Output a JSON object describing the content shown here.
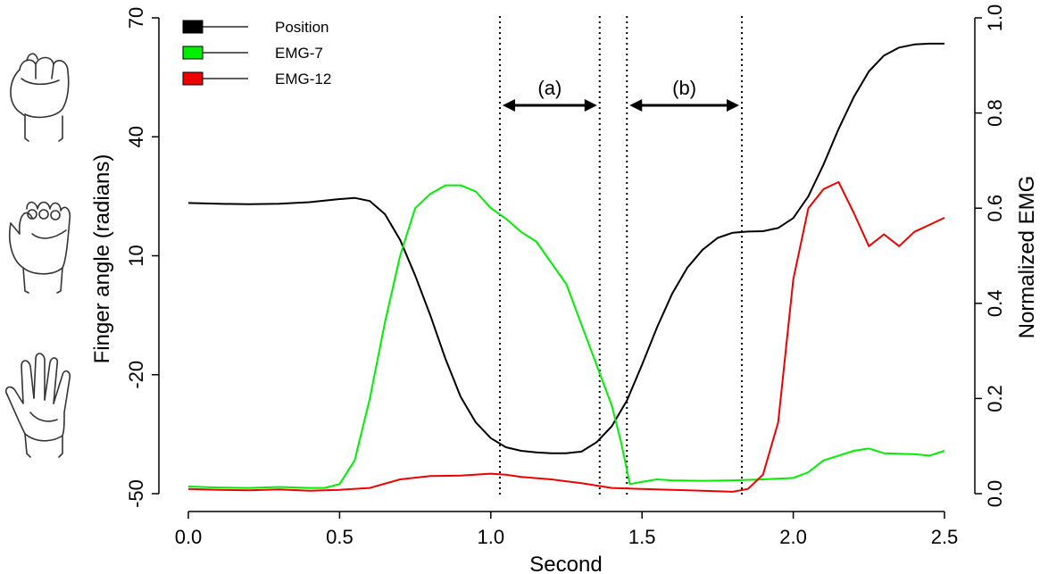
{
  "chart_data": {
    "type": "line",
    "title": "",
    "xlabel": "Second",
    "ylabel_left": "Finger angle (radians)",
    "ylabel_right": "Normalized EMG",
    "xlim": [
      0.0,
      2.5
    ],
    "ylim_left": [
      -50,
      70
    ],
    "ylim_right": [
      0.0,
      1.0
    ],
    "x_ticks": [
      "0.0",
      "0.5",
      "1.0",
      "1.5",
      "2.0",
      "2.5"
    ],
    "y_left_ticks": [
      "-50",
      "-20",
      "10",
      "40",
      "70"
    ],
    "y_right_ticks": [
      "0.0",
      "0.2",
      "0.4",
      "0.6",
      "0.8",
      "1.0"
    ],
    "grid": false,
    "legend_position": "top-left",
    "series": [
      {
        "name": "Position",
        "axis": "left",
        "color": "#000000",
        "points": [
          [
            0.0,
            23.3
          ],
          [
            0.1,
            23.1
          ],
          [
            0.2,
            23.0
          ],
          [
            0.3,
            23.1
          ],
          [
            0.4,
            23.5
          ],
          [
            0.5,
            24.3
          ],
          [
            0.55,
            24.6
          ],
          [
            0.6,
            23.8
          ],
          [
            0.65,
            20.5
          ],
          [
            0.7,
            14.0
          ],
          [
            0.75,
            5.0
          ],
          [
            0.8,
            -5.0
          ],
          [
            0.85,
            -16.0
          ],
          [
            0.9,
            -25.5
          ],
          [
            0.95,
            -32.0
          ],
          [
            1.0,
            -36.0
          ],
          [
            1.05,
            -38.3
          ],
          [
            1.1,
            -39.2
          ],
          [
            1.15,
            -39.6
          ],
          [
            1.2,
            -39.8
          ],
          [
            1.25,
            -39.8
          ],
          [
            1.3,
            -39.4
          ],
          [
            1.35,
            -37.0
          ],
          [
            1.4,
            -33.0
          ],
          [
            1.45,
            -26.5
          ],
          [
            1.5,
            -17.5
          ],
          [
            1.55,
            -8.0
          ],
          [
            1.6,
            0.5
          ],
          [
            1.65,
            7.0
          ],
          [
            1.7,
            11.5
          ],
          [
            1.75,
            14.5
          ],
          [
            1.8,
            15.8
          ],
          [
            1.85,
            16.1
          ],
          [
            1.9,
            16.2
          ],
          [
            1.95,
            17.0
          ],
          [
            2.0,
            19.5
          ],
          [
            2.05,
            25.0
          ],
          [
            2.1,
            33.0
          ],
          [
            2.15,
            42.0
          ],
          [
            2.2,
            50.0
          ],
          [
            2.25,
            56.5
          ],
          [
            2.3,
            60.5
          ],
          [
            2.35,
            62.5
          ],
          [
            2.4,
            63.3
          ],
          [
            2.45,
            63.5
          ],
          [
            2.5,
            63.5
          ]
        ]
      },
      {
        "name": "EMG-7",
        "axis": "right",
        "color": "#00ee00",
        "points": [
          [
            0.0,
            0.015
          ],
          [
            0.1,
            0.013
          ],
          [
            0.2,
            0.012
          ],
          [
            0.3,
            0.014
          ],
          [
            0.4,
            0.012
          ],
          [
            0.45,
            0.012
          ],
          [
            0.5,
            0.02
          ],
          [
            0.55,
            0.07
          ],
          [
            0.6,
            0.2
          ],
          [
            0.65,
            0.36
          ],
          [
            0.7,
            0.5
          ],
          [
            0.75,
            0.6
          ],
          [
            0.8,
            0.63
          ],
          [
            0.85,
            0.648
          ],
          [
            0.9,
            0.648
          ],
          [
            0.95,
            0.635
          ],
          [
            1.0,
            0.6
          ],
          [
            1.05,
            0.578
          ],
          [
            1.1,
            0.55
          ],
          [
            1.15,
            0.53
          ],
          [
            1.2,
            0.485
          ],
          [
            1.25,
            0.44
          ],
          [
            1.3,
            0.355
          ],
          [
            1.35,
            0.27
          ],
          [
            1.4,
            0.185
          ],
          [
            1.43,
            0.11
          ],
          [
            1.46,
            0.02
          ],
          [
            1.5,
            0.025
          ],
          [
            1.55,
            0.03
          ],
          [
            1.6,
            0.028
          ],
          [
            1.7,
            0.027
          ],
          [
            1.8,
            0.028
          ],
          [
            1.9,
            0.03
          ],
          [
            2.0,
            0.033
          ],
          [
            2.05,
            0.045
          ],
          [
            2.1,
            0.07
          ],
          [
            2.15,
            0.08
          ],
          [
            2.2,
            0.09
          ],
          [
            2.25,
            0.095
          ],
          [
            2.3,
            0.085
          ],
          [
            2.4,
            0.083
          ],
          [
            2.45,
            0.08
          ],
          [
            2.5,
            0.09
          ]
        ]
      },
      {
        "name": "EMG-12",
        "axis": "right",
        "color": "#ee0000",
        "points": [
          [
            0.0,
            0.01
          ],
          [
            0.1,
            0.008
          ],
          [
            0.2,
            0.007
          ],
          [
            0.3,
            0.009
          ],
          [
            0.4,
            0.006
          ],
          [
            0.5,
            0.008
          ],
          [
            0.6,
            0.012
          ],
          [
            0.7,
            0.03
          ],
          [
            0.8,
            0.037
          ],
          [
            0.9,
            0.038
          ],
          [
            1.0,
            0.042
          ],
          [
            1.05,
            0.04
          ],
          [
            1.1,
            0.035
          ],
          [
            1.2,
            0.03
          ],
          [
            1.3,
            0.022
          ],
          [
            1.4,
            0.012
          ],
          [
            1.5,
            0.01
          ],
          [
            1.6,
            0.008
          ],
          [
            1.7,
            0.006
          ],
          [
            1.8,
            0.004
          ],
          [
            1.85,
            0.01
          ],
          [
            1.9,
            0.04
          ],
          [
            1.95,
            0.15
          ],
          [
            2.0,
            0.45
          ],
          [
            2.05,
            0.6
          ],
          [
            2.1,
            0.64
          ],
          [
            2.15,
            0.655
          ],
          [
            2.2,
            0.59
          ],
          [
            2.25,
            0.52
          ],
          [
            2.3,
            0.545
          ],
          [
            2.35,
            0.52
          ],
          [
            2.4,
            0.55
          ],
          [
            2.45,
            0.565
          ],
          [
            2.5,
            0.58
          ]
        ]
      }
    ],
    "annotations": [
      {
        "label": "(a)",
        "x_start": 1.03,
        "x_end": 1.36
      },
      {
        "label": "(b)",
        "x_start": 1.45,
        "x_end": 1.83
      }
    ],
    "vlines": [
      1.03,
      1.36,
      1.45,
      1.83
    ],
    "hand_icons": [
      "fist-hand",
      "half-open-hand",
      "open-hand"
    ]
  }
}
